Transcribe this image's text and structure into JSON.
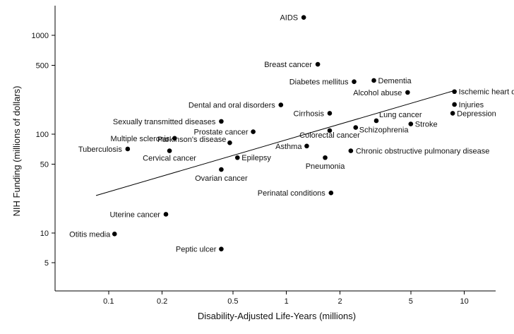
{
  "chart_data": {
    "type": "scatter",
    "title": "",
    "xlabel": "Disability-Adjusted Life-Years (millions)",
    "ylabel": "NIH Funding (millions of dollars)",
    "x_scale": "log",
    "y_scale": "log",
    "xlim": [
      0.05,
      15
    ],
    "ylim": [
      2.6,
      2000
    ],
    "x_ticks": [
      {
        "value": 0.1,
        "label": "0.1"
      },
      {
        "value": 0.2,
        "label": "0.2"
      },
      {
        "value": 0.5,
        "label": "0.5"
      },
      {
        "value": 1,
        "label": "1"
      },
      {
        "value": 2,
        "label": "2"
      },
      {
        "value": 5,
        "label": "5"
      },
      {
        "value": 10,
        "label": "10"
      }
    ],
    "y_ticks": [
      {
        "value": 5,
        "label": "5"
      },
      {
        "value": 10,
        "label": "10"
      },
      {
        "value": 50,
        "label": "50"
      },
      {
        "value": 100,
        "label": "100"
      },
      {
        "value": 500,
        "label": "500"
      },
      {
        "value": 1000,
        "label": "1000"
      }
    ],
    "grid": false,
    "points": [
      {
        "name": "AIDS",
        "x": 1.25,
        "y": 1520,
        "anchor": "end",
        "dx": -8,
        "dy": 4
      },
      {
        "name": "Breast cancer",
        "x": 1.5,
        "y": 510,
        "anchor": "end",
        "dx": -8,
        "dy": 4
      },
      {
        "name": "Diabetes mellitus",
        "x": 2.4,
        "y": 340,
        "anchor": "end",
        "dx": -8,
        "dy": 4
      },
      {
        "name": "Dementia",
        "x": 3.1,
        "y": 350,
        "anchor": "start",
        "dx": 6,
        "dy": 4
      },
      {
        "name": "Alcohol abuse",
        "x": 4.8,
        "y": 265,
        "anchor": "end",
        "dx": -8,
        "dy": 4
      },
      {
        "name": "Ischemic heart disease",
        "x": 8.8,
        "y": 270,
        "anchor": "start",
        "dx": 6,
        "dy": 4
      },
      {
        "name": "Injuries",
        "x": 8.8,
        "y": 200,
        "anchor": "start",
        "dx": 6,
        "dy": 4
      },
      {
        "name": "Depression",
        "x": 8.6,
        "y": 163,
        "anchor": "start",
        "dx": 6,
        "dy": 4
      },
      {
        "name": "Dental and oral disorders",
        "x": 0.93,
        "y": 198,
        "anchor": "end",
        "dx": -8,
        "dy": 4
      },
      {
        "name": "Cirrhosis",
        "x": 1.75,
        "y": 163,
        "anchor": "end",
        "dx": -8,
        "dy": 4
      },
      {
        "name": "Lung cancer",
        "x": 3.2,
        "y": 137,
        "anchor": "start",
        "dx": 4,
        "dy": -5
      },
      {
        "name": "Stroke",
        "x": 5.0,
        "y": 127,
        "anchor": "start",
        "dx": 6,
        "dy": 4
      },
      {
        "name": "Schizophrenia",
        "x": 2.45,
        "y": 117,
        "anchor": "start",
        "dx": 5,
        "dy": 7
      },
      {
        "name": "Sexually transmitted diseases",
        "x": 0.43,
        "y": 135,
        "anchor": "end",
        "dx": -8,
        "dy": 4
      },
      {
        "name": "Prostate cancer",
        "x": 0.65,
        "y": 106,
        "anchor": "end",
        "dx": -7,
        "dy": 4
      },
      {
        "name": "Multiple sclerosis",
        "x": 0.235,
        "y": 91,
        "anchor": "end",
        "dx": -7,
        "dy": 4
      },
      {
        "name": "Parkinson's disease",
        "x": 0.48,
        "y": 82,
        "anchor": "end",
        "dx": -5,
        "dy": -1
      },
      {
        "name": "Colorectal cancer",
        "x": 1.75,
        "y": 109,
        "anchor": "middle",
        "dx": 0,
        "dy": 10
      },
      {
        "name": "Asthma",
        "x": 1.3,
        "y": 76,
        "anchor": "end",
        "dx": -7,
        "dy": 4
      },
      {
        "name": "Tuberculosis",
        "x": 0.128,
        "y": 71,
        "anchor": "end",
        "dx": -8,
        "dy": 4
      },
      {
        "name": "Cervical cancer",
        "x": 0.22,
        "y": 68,
        "anchor": "middle",
        "dx": 0,
        "dy": 14
      },
      {
        "name": "Chronic obstructive pulmonary disease",
        "x": 2.3,
        "y": 68,
        "anchor": "start",
        "dx": 7,
        "dy": 4
      },
      {
        "name": "Epilepsy",
        "x": 0.53,
        "y": 58,
        "anchor": "start",
        "dx": 6,
        "dy": 4
      },
      {
        "name": "Pneumonia",
        "x": 1.65,
        "y": 58,
        "anchor": "middle",
        "dx": 0,
        "dy": 16
      },
      {
        "name": "Ovarian cancer",
        "x": 0.43,
        "y": 44,
        "anchor": "middle",
        "dx": 0,
        "dy": 16
      },
      {
        "name": "Perinatal conditions",
        "x": 1.78,
        "y": 25.5,
        "anchor": "end",
        "dx": -8,
        "dy": 4
      },
      {
        "name": "Uterine cancer",
        "x": 0.21,
        "y": 15.5,
        "anchor": "end",
        "dx": -8,
        "dy": 4
      },
      {
        "name": "Otitis media",
        "x": 0.108,
        "y": 9.8,
        "anchor": "end",
        "dx": -6,
        "dy": 4
      },
      {
        "name": "Peptic ulcer",
        "x": 0.43,
        "y": 6.9,
        "anchor": "end",
        "dx": -7,
        "dy": 4
      }
    ],
    "trend_line": {
      "x": [
        0.085,
        8.7
      ],
      "y": [
        24,
        275
      ]
    }
  }
}
